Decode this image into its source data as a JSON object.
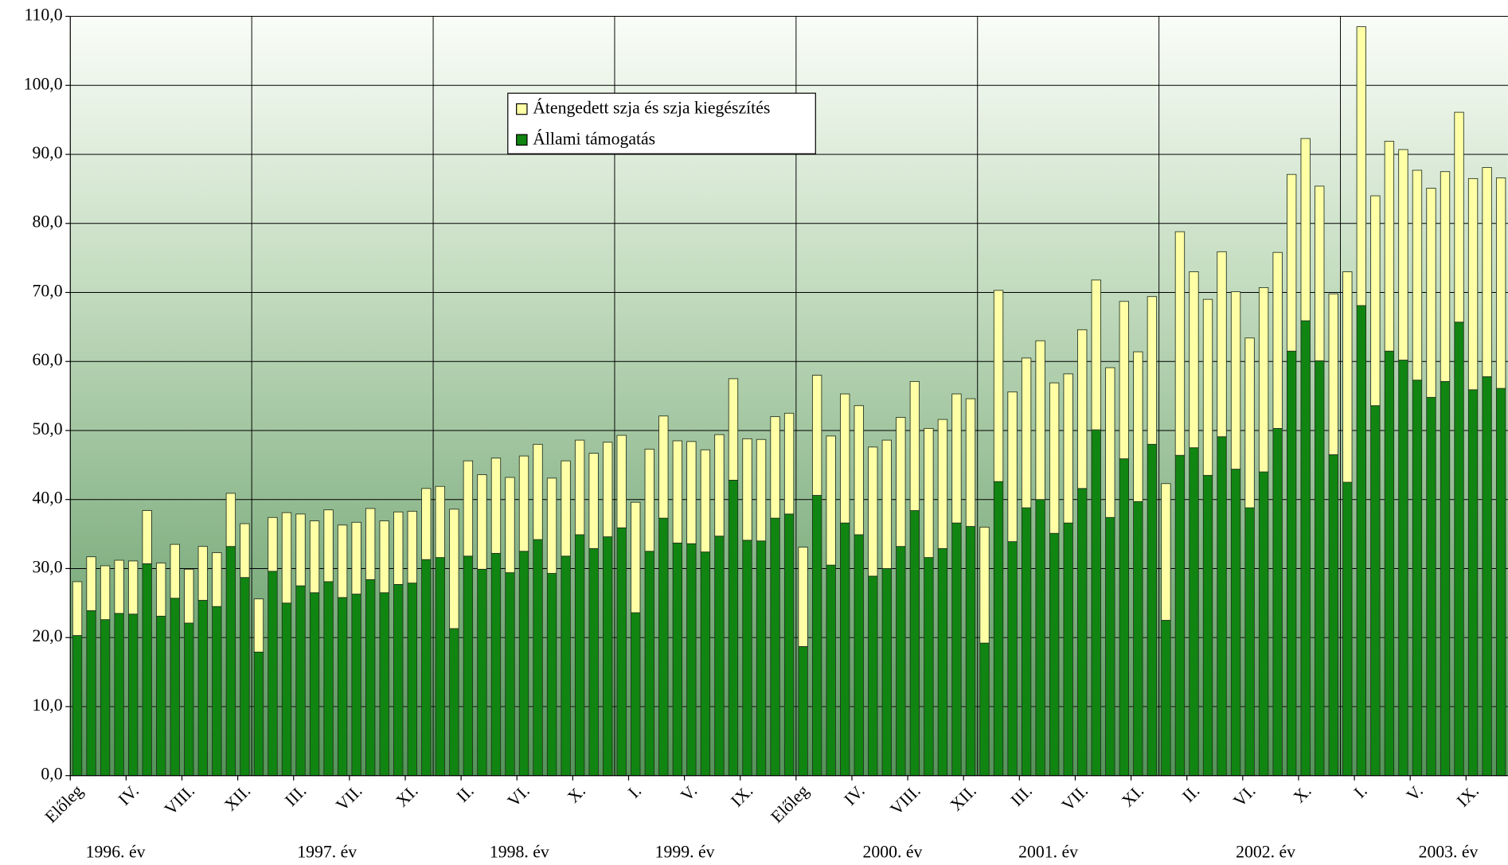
{
  "chart_data": {
    "type": "stacked_bar",
    "categories": [
      "Előleg",
      null,
      null,
      null,
      "IV.",
      null,
      null,
      null,
      "VIII.",
      null,
      null,
      null,
      "XII.",
      null,
      null,
      null,
      "III.",
      null,
      null,
      null,
      "VII.",
      null,
      null,
      null,
      "XI.",
      null,
      null,
      null,
      "II.",
      null,
      null,
      null,
      "VI.",
      null,
      null,
      null,
      "X.",
      null,
      null,
      null,
      "I.",
      null,
      null,
      null,
      "V.",
      null,
      null,
      null,
      "IX.",
      null,
      null,
      null,
      "Előleg",
      null,
      null,
      null,
      "IV.",
      null,
      null,
      null,
      "VIII.",
      null,
      null,
      null,
      "XII.",
      null,
      null,
      null,
      "III.",
      null,
      null,
      null,
      "VII.",
      null,
      null,
      null,
      "XI.",
      null,
      null,
      null,
      "II.",
      null,
      null,
      null,
      "VI.",
      null,
      null,
      null,
      "X.",
      null,
      null,
      null,
      "I.",
      null,
      null,
      null,
      "V.",
      null,
      null,
      null,
      "IX.",
      null,
      null
    ],
    "year_labels": [
      "1996. év",
      "1997. év",
      "1998. év",
      "1999. év",
      "2000. év",
      "2001. év",
      "2002. év",
      "2003. év"
    ],
    "series": [
      {
        "name": "Állami támogatás",
        "color": "#118511",
        "values": [
          20.3,
          23.9,
          22.6,
          23.5,
          23.4,
          30.7,
          23.1,
          25.7,
          22.1,
          25.4,
          24.5,
          33.2,
          28.7,
          17.9,
          29.6,
          25.0,
          27.5,
          26.5,
          28.1,
          25.8,
          26.3,
          28.4,
          26.5,
          27.7,
          27.9,
          31.3,
          31.6,
          21.3,
          31.8,
          29.9,
          32.2,
          29.4,
          32.5,
          34.2,
          29.3,
          31.8,
          34.9,
          32.9,
          34.6,
          35.9,
          23.6,
          32.5,
          37.3,
          33.7,
          33.6,
          32.4,
          34.7,
          42.8,
          34.1,
          34.0,
          37.3,
          37.9,
          18.7,
          40.6,
          30.5,
          36.6,
          34.9,
          28.9,
          30.0,
          33.2,
          38.4,
          31.6,
          32.9,
          36.6,
          36.1,
          19.2,
          42.6,
          33.9,
          38.8,
          40.0,
          35.1,
          36.6,
          41.6,
          50.1,
          37.4,
          45.9,
          39.7,
          48.0,
          22.5,
          46.4,
          47.5,
          43.5,
          49.1,
          44.4,
          38.8,
          44.0,
          50.3,
          61.5,
          65.9,
          60.1,
          46.5,
          42.5,
          68.1,
          53.6,
          61.5,
          60.2,
          57.3,
          54.8,
          57.1,
          65.7,
          55.9,
          57.8,
          56.1
        ]
      },
      {
        "name": "Átengedett szja és szja kiegészítés",
        "color": "#ffffa6",
        "values": [
          7.8,
          7.8,
          7.8,
          7.7,
          7.7,
          7.7,
          7.7,
          7.8,
          7.8,
          7.8,
          7.8,
          7.7,
          7.8,
          7.7,
          7.8,
          13.1,
          10.4,
          10.4,
          10.4,
          10.5,
          10.4,
          10.3,
          10.4,
          10.5,
          10.4,
          10.3,
          10.3,
          17.3,
          13.8,
          13.7,
          13.8,
          13.8,
          13.8,
          13.8,
          13.8,
          13.8,
          13.7,
          13.8,
          13.7,
          13.4,
          16.0,
          14.8,
          14.8,
          14.8,
          14.8,
          14.8,
          14.7,
          14.7,
          14.7,
          14.7,
          14.7,
          14.6,
          14.4,
          17.4,
          18.7,
          18.7,
          18.7,
          18.7,
          18.6,
          18.7,
          18.7,
          18.7,
          18.7,
          18.7,
          18.5,
          16.8,
          27.7,
          21.7,
          21.7,
          23.0,
          21.8,
          21.6,
          23.0,
          21.7,
          21.7,
          22.8,
          21.7,
          21.4,
          19.8,
          32.4,
          25.5,
          25.5,
          26.8,
          25.7,
          24.6,
          26.7,
          25.5,
          25.6,
          26.4,
          25.3,
          23.3,
          30.5,
          40.4,
          30.4,
          30.4,
          30.5,
          30.4,
          30.3,
          30.4,
          30.4,
          30.6,
          30.3,
          30.5
        ]
      }
    ],
    "ylim": [
      0,
      110
    ],
    "yticks": [
      {
        "value": 0,
        "label": "0,0"
      },
      {
        "value": 10,
        "label": "10,0"
      },
      {
        "value": 20,
        "label": "20,0"
      },
      {
        "value": 30,
        "label": "30,0"
      },
      {
        "value": 40,
        "label": "40,0"
      },
      {
        "value": 50,
        "label": "50,0"
      },
      {
        "value": 60,
        "label": "60,0"
      },
      {
        "value": 70,
        "label": "70,0"
      },
      {
        "value": 80,
        "label": "80,0"
      },
      {
        "value": 90,
        "label": "90,0"
      },
      {
        "value": 100,
        "label": "100,0"
      },
      {
        "value": 110,
        "label": "110,0"
      }
    ],
    "grid": true,
    "legend": "top-center"
  }
}
